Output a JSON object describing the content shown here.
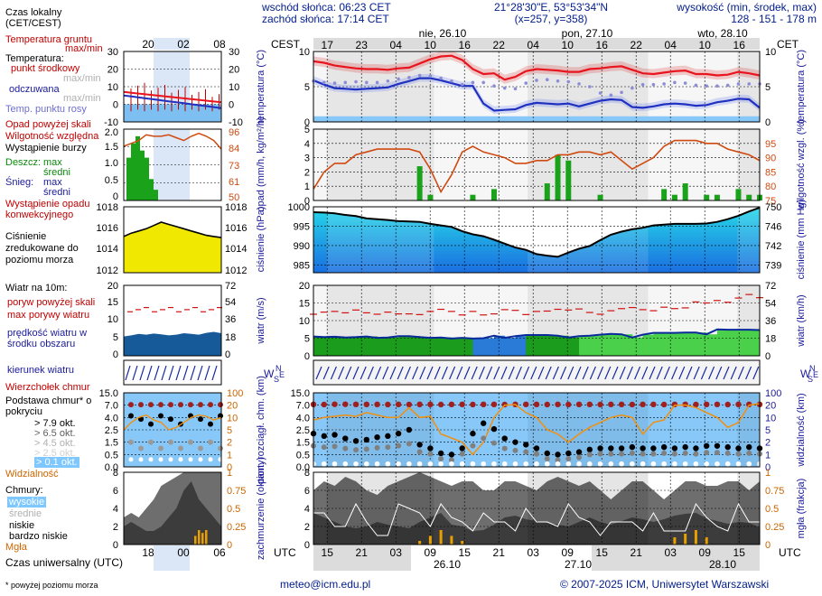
{
  "header": {
    "sunrise": "wschód słońca: 06:23 CET",
    "sunset": "zachód słońca: 17:14 CET",
    "coords": "21°28'30\"E, 53°53'34\"N",
    "grid": "(x=257, y=358)",
    "elevation_label": "wysokość (min, środek, max)",
    "elevation_value": "128 - 151 - 178 m"
  },
  "timeline": {
    "tz_top": "CEST",
    "tz_top_right": "CET",
    "tz_bottom": "UTC",
    "top_hours": [
      "17",
      "23",
      "04",
      "10",
      "16",
      "22",
      "04",
      "10",
      "16",
      "22",
      "04",
      "10",
      "16"
    ],
    "bottom_hours": [
      "15",
      "21",
      "03",
      "09",
      "15",
      "21",
      "03",
      "09",
      "15",
      "21",
      "03",
      "09",
      "15"
    ],
    "day_labels_top": [
      "nie, 26.10",
      "pon, 27.10",
      "wto, 28.10"
    ],
    "day_labels_bottom": [
      "26.10",
      "27.10",
      "28.10"
    ],
    "small_top_hours": [
      "20",
      "02",
      "08"
    ],
    "small_bottom_hours": [
      "18",
      "00",
      "06"
    ]
  },
  "legend": {
    "local_time": "Czas lokalny",
    "local_time_tz": "(CET/CEST)",
    "soil_temp": "Temperatura gruntu",
    "soil_temp_range": "max/min",
    "temperature": "Temperatura:",
    "center_point": "punkt środkowy",
    "center_range": "max/min",
    "feels_like": "odczuwana",
    "feels_range": "max/min",
    "dew_point": "Temp. punktu rosy",
    "precip_above": "Opad powyżej skali",
    "humidity": "Wilgotność względna",
    "storm": "Wystąpienie burzy",
    "rain_label": "Deszcz:",
    "rain_max": "max",
    "rain_mid": "średni",
    "snow_label": "Śnieg:",
    "snow_max": "max",
    "snow_mid": "średni",
    "conv": "Wystąpienie opadu konwekcyjnego",
    "pressure": "Ciśnienie zredukowane do poziomu morza",
    "wind_title": "Wiatr na 10m:",
    "gust_above": "poryw powyżej skali",
    "gust_max": "max porywy wiatru",
    "wind_speed": "prędkość wiatru w środku obszaru",
    "wind_dir": "kierunek wiatru",
    "cloud_top": "Wierzchołek chmur",
    "cloud_base": "Podstawa chmur* o pokryciu",
    "okt_79": "> 7.9 okt.",
    "okt_65": "> 6.5 okt.",
    "okt_45": "> 4.5 okt.",
    "okt_25": "> 2.5 okt.",
    "okt_01": "> 0.1 okt.",
    "visibility": "Widzialność",
    "clouds": "Chmury:",
    "high": "wysokie",
    "mid": "średnie",
    "low": "niskie",
    "very_low": "bardzo niskie",
    "fog": "Mgła",
    "utc": "Czas uniwersalny (UTC)",
    "footnote": "* powyżej poziomu morza"
  },
  "axis_titles": {
    "temp_l": "temperatura (°C)",
    "temp_r": "temperatura (°C)",
    "precip_l": "opad (mm/h, kg/m²/h)",
    "precip_r": "wilgotność wzgl. (%)",
    "press_l": "ciśnienie (hPa)",
    "press_r": "ciśnienie (mm Hg)",
    "wind_l": "wiatr (m/s)",
    "wind_r": "wiatr (km/h)",
    "wdir_l": "W S E N",
    "cloud_l": "pion. rozciągł. chm. (km)",
    "cloud_r": "widzialność (km)",
    "cover_l": "zachmurzenie (oktanty)",
    "cover_r": "mgła (frakcja)"
  },
  "footer": {
    "email": "meteo@icm.edu.pl",
    "copyright": "© 2007-2025 ICM, Uniwersytet Warszawski"
  },
  "colors": {
    "temp": "#e8141e",
    "temp_range": "#c00000",
    "feels": "#2030c0",
    "dew": "#8c8cd8",
    "humidity": "#d04a10",
    "rain": "#1aa31a",
    "pressure_line": "#000000",
    "pressure_fill": "#20c8e6",
    "pressure_fill_small": "#f0e800",
    "wind": "#0a2a9a",
    "wind_fill": "#1c9c1c",
    "gust": "#d21010",
    "visibility": "#f09010",
    "sky_blue": "#88c8f8",
    "night_grey": "#dcdcdc"
  },
  "chart_data": [
    {
      "type": "line",
      "name": "temperature",
      "ylim": [
        0,
        10
      ],
      "y2lim": [
        0,
        10
      ],
      "yticks": [
        0,
        5,
        10
      ],
      "series": [
        {
          "name": "punkt środkowy",
          "values": [
            8.6,
            8.4,
            8.0,
            7.8,
            7.6,
            7.5,
            7.5,
            7.4,
            7.6,
            7.7,
            8.3,
            8.9,
            9.3,
            9.4,
            8.8,
            7.5,
            6.8,
            6.9,
            6.0,
            6.4,
            7.2,
            7.5,
            7.4,
            7.3,
            7.1,
            7.1,
            7.5,
            7.6,
            7.8,
            7.9,
            7.4,
            6.9,
            6.8,
            7.0,
            7.2,
            7.3,
            6.8,
            6.8,
            6.6,
            6.7,
            7.1,
            6.9,
            6.6
          ]
        },
        {
          "name": "odczuwana",
          "values": [
            5.9,
            5.3,
            4.8,
            4.7,
            4.6,
            4.7,
            4.8,
            4.9,
            5.4,
            5.8,
            6.2,
            6.2,
            5.9,
            5.5,
            5.1,
            5.1,
            2.6,
            1.6,
            1.7,
            1.8,
            2.4,
            2.7,
            2.6,
            2.5,
            2.6,
            2.2,
            2.6,
            3.0,
            3.2,
            3.1,
            2.1,
            2.0,
            2.2,
            2.5,
            2.6,
            2.5,
            2.3,
            2.4,
            2.8,
            3.0,
            3.3,
            3.2,
            2.0
          ]
        },
        {
          "name": "Temp. punktu rosy",
          "values": [
            5.8,
            5.6,
            5.5,
            5.6,
            5.7,
            5.6,
            5.6,
            5.8,
            6.1,
            6.3,
            6.6,
            6.5,
            6.2,
            5.8,
            5.3,
            5.6,
            5.6,
            5.1,
            4.8,
            4.7,
            5.5,
            5.9,
            6.0,
            5.8,
            5.7,
            5.4,
            5.0,
            4.1,
            3.8,
            4.2,
            4.8,
            5.3,
            5.3,
            5.4,
            5.6,
            5.5,
            5.2,
            5.1,
            5.1,
            5.2,
            5.4,
            5.4,
            5.4
          ]
        },
        {
          "name": "Temperatura gruntu",
          "values": [
            0.5,
            0.5,
            0.5,
            0.5,
            0.5,
            0.5,
            0.5,
            0.5,
            0.5,
            0.5,
            0.5,
            0.5,
            0.5,
            0.5,
            0.5,
            0.5,
            0.5,
            0.5,
            0.5,
            0.5,
            0.5,
            0.5,
            0.5,
            0.5,
            0.5,
            0.5,
            0.5,
            0.5,
            0.5,
            0.5,
            0.5,
            0.5,
            0.5,
            0.5,
            0.5,
            0.5,
            0.5,
            0.5,
            0.5,
            0.5,
            0.5,
            0.5,
            0.5
          ]
        }
      ]
    },
    {
      "type": "bar",
      "name": "precipitation",
      "ylim": [
        0,
        5
      ],
      "y2lim": [
        75,
        100
      ],
      "yticks": [
        0,
        1,
        2,
        3,
        4,
        5
      ],
      "y2ticks": [
        75,
        80,
        85,
        90,
        95
      ],
      "series": [
        {
          "name": "średni",
          "values": [
            0,
            0,
            0,
            0,
            0,
            0,
            0,
            0,
            0,
            0,
            0.6,
            0.1,
            0,
            0,
            0,
            0.1,
            0,
            0.2,
            0,
            0,
            0,
            0,
            0.3,
            0.8,
            0.7,
            0,
            0,
            0.1,
            0,
            0,
            0,
            0,
            0,
            0.2,
            0.1,
            0.3,
            0,
            0.1,
            0.1,
            0,
            0.2,
            0.1,
            0.1
          ]
        },
        {
          "name": "Wilgotność względna",
          "values": [
            79,
            85,
            88,
            88,
            91,
            92,
            93,
            93,
            93,
            93,
            92,
            86,
            78,
            84,
            92,
            94,
            92,
            91,
            90,
            88,
            88,
            89,
            89,
            91,
            91,
            92,
            92,
            91,
            92,
            89,
            86,
            88,
            90,
            94,
            96,
            96,
            96,
            95,
            95,
            93,
            92,
            91,
            89
          ]
        }
      ]
    },
    {
      "type": "area",
      "name": "pressure",
      "ylim": [
        983,
        1000
      ],
      "yticks": [
        985,
        990,
        995,
        1000
      ],
      "y2ticks": [
        739,
        742,
        746,
        750
      ],
      "series": [
        {
          "name": "Ciśnienie",
          "values": [
            998.6,
            998.5,
            998.3,
            997.9,
            997.6,
            997.0,
            996.8,
            996.6,
            996.3,
            996.2,
            996.1,
            995.6,
            995.2,
            994.8,
            993.7,
            992.9,
            992.4,
            991.5,
            990.5,
            989.5,
            988.9,
            987.8,
            987.4,
            987.1,
            988.2,
            989.2,
            989.9,
            991.4,
            992.8,
            993.6,
            994.2,
            994.6,
            995.2,
            995.4,
            995.6,
            995.6,
            995.6,
            995.7,
            996.1,
            996.8,
            997.7,
            998.8,
            999.8
          ]
        }
      ]
    },
    {
      "type": "line",
      "name": "wind",
      "ylim": [
        0,
        20
      ],
      "yticks": [
        0,
        5,
        10,
        15,
        20
      ],
      "y2ticks": [
        0,
        18,
        36,
        54,
        72
      ],
      "series": [
        {
          "name": "prędkość wiatru",
          "values": [
            5.5,
            5.3,
            5.4,
            5.2,
            5.3,
            5.5,
            5.1,
            5.2,
            5.6,
            5.6,
            5.3,
            5.1,
            5.2,
            4.9,
            5.1,
            4.9,
            5.0,
            5.7,
            5.1,
            5.6,
            5.9,
            5.9,
            5.9,
            5.7,
            5.2,
            5.6,
            5.7,
            6.0,
            6.2,
            6.1,
            5.2,
            6.0,
            6.5,
            6.5,
            6.5,
            6.6,
            6.6,
            6.1,
            7.5,
            7.4,
            7.4,
            7.4,
            7.3
          ]
        },
        {
          "name": "max porywy wiatru",
          "values": [
            11.8,
            12.4,
            12.6,
            12.2,
            13.0,
            12.2,
            11.8,
            12.4,
            11.9,
            11.9,
            11.7,
            12.6,
            13.2,
            12.6,
            11.6,
            12.6,
            11.6,
            11.9,
            13.1,
            12.9,
            11.7,
            12.6,
            12.7,
            13.2,
            13.0,
            13.3,
            12.3,
            11.8,
            12.8,
            13.4,
            13.7,
            13.1,
            12.8,
            13.8,
            13.4,
            13.6,
            15.3,
            15.0,
            15.7,
            15.2,
            16.4,
            17.4,
            16.5
          ]
        }
      ]
    },
    {
      "type": "line",
      "name": "cloud_visibility",
      "ylim": [
        0,
        15
      ],
      "yticks": [
        0.0,
        0.5,
        1.5,
        2.5,
        4.0,
        7.0,
        15.0
      ],
      "y2ticks": [
        0,
        1,
        2,
        5,
        10,
        20,
        100
      ],
      "series": [
        {
          "name": "Widzialność",
          "values": [
            9,
            10,
            11,
            12,
            11,
            14,
            12,
            10,
            10,
            18,
            10,
            11,
            4,
            3,
            2,
            1,
            2,
            10,
            20,
            24,
            14,
            10,
            5,
            4,
            2,
            4,
            6,
            8,
            10,
            12,
            10,
            4,
            8,
            9,
            20,
            21,
            18,
            14,
            10,
            6,
            8,
            20,
            30
          ]
        },
        {
          "name": "Wierzchołek chmur",
          "values": [
            7.5,
            7.4,
            7.6,
            7.6,
            7.5,
            7.5,
            7.5,
            7.4,
            7.5,
            7.4,
            7.5,
            7.5,
            7.4,
            7.5,
            7.5,
            7.4,
            7.5,
            7.5,
            7.4,
            7.5,
            7.5,
            7.5,
            7.4,
            7.5,
            7.4,
            7.5,
            7.5,
            7.4,
            7.5,
            7.5,
            7.4,
            7.5,
            7.5,
            7.4,
            7.5,
            7.5,
            7.4,
            7.5,
            7.5,
            7.4,
            7.5,
            7.5,
            7.5
          ]
        }
      ]
    },
    {
      "type": "area",
      "name": "cloud_cover",
      "ylim": [
        0,
        8
      ],
      "yticks": [
        0,
        2,
        4,
        6,
        8
      ],
      "y2ticks": [
        0,
        0.25,
        0.5,
        0.75,
        1
      ],
      "series": [
        {
          "name": "wysokie",
          "values": [
            6,
            7,
            6.5,
            7.5,
            7,
            6,
            5.5,
            6.5,
            7,
            7.5,
            8,
            7.5,
            7,
            6.5,
            7,
            7,
            6,
            6,
            7,
            7,
            6.5,
            6,
            7,
            7.5,
            7,
            6.5,
            7,
            6,
            5,
            6,
            7,
            7,
            6,
            5,
            6,
            7,
            7,
            6.5,
            6.5,
            7,
            7,
            6,
            7
          ]
        },
        {
          "name": "niskie",
          "values": [
            3.5,
            3,
            2.5,
            2,
            1.8,
            2,
            2.5,
            2.2,
            2,
            1.8,
            2.5,
            3,
            3.5,
            2.2,
            2,
            1.5,
            1.6,
            2.2,
            3,
            3.2,
            2.8,
            2.6,
            2.4,
            2.2,
            2,
            2.5,
            3,
            2.5,
            2.2,
            2.6,
            3,
            2.8,
            2.5,
            2.8,
            3.2,
            3.4,
            3.5,
            2.9,
            2.6,
            2.3,
            2.5,
            2.4,
            1.9
          ]
        },
        {
          "name": "Mgła",
          "values": [
            0,
            0,
            0,
            0,
            0,
            0,
            0,
            0,
            0,
            0,
            0.05,
            0.12,
            0.2,
            0.12,
            0.05,
            0,
            0,
            0,
            0,
            0,
            0,
            0,
            0,
            0,
            0,
            0,
            0,
            0,
            0,
            0,
            0,
            0,
            0,
            0,
            0.1,
            0.15,
            0.2,
            0.1,
            0,
            0,
            0,
            0,
            0
          ]
        }
      ]
    }
  ]
}
